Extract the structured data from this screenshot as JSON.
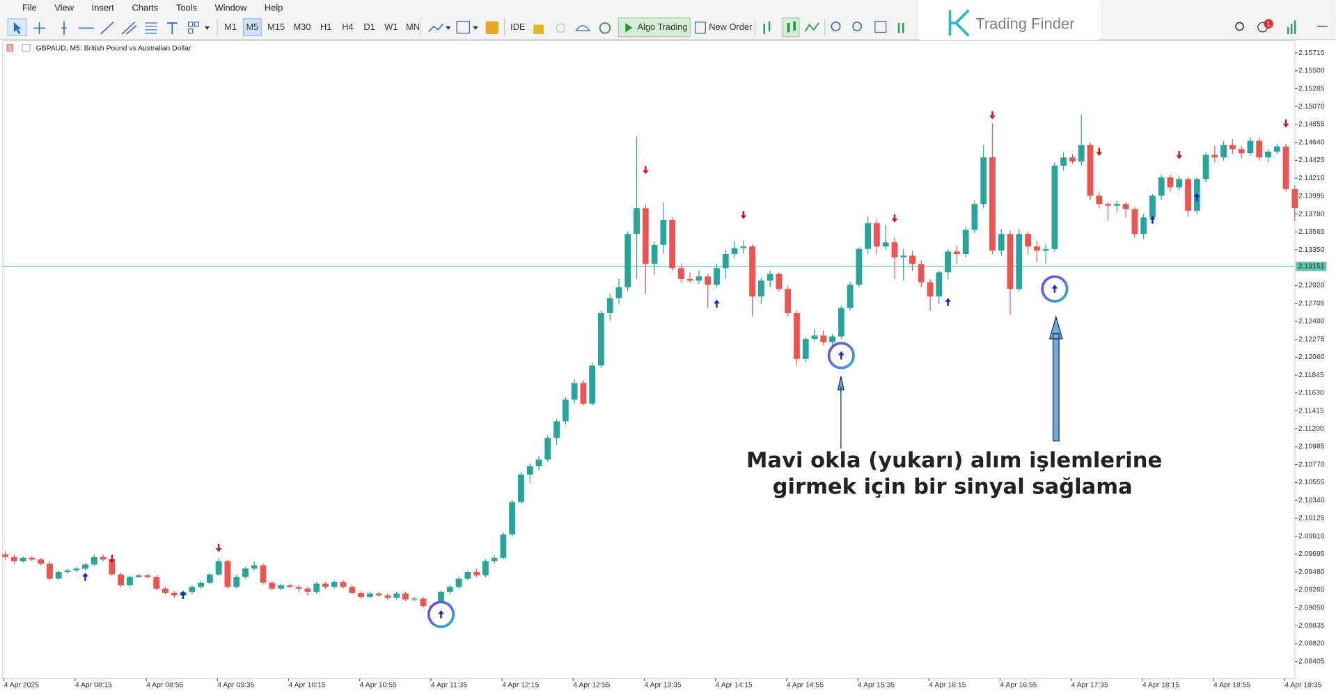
{
  "menu": [
    "File",
    "View",
    "Insert",
    "Charts",
    "Tools",
    "Window",
    "Help"
  ],
  "timeframes": [
    "M1",
    "M5",
    "M15",
    "M30",
    "H1",
    "H4",
    "D1",
    "W1",
    "MN"
  ],
  "toolbar": {
    "ide": "IDE",
    "algo": "Algo Trading",
    "order": "New Order",
    "badge": "1"
  },
  "logo": "Trading Finder",
  "annotation": [
    "Mavi okla (yukarı) alım işlemlerine",
    "girmek için bir sinyal sağlama"
  ],
  "chart_data": {
    "type": "candlestick",
    "title": "GBPAUD, M5:  British Pound vs Australian Dollar",
    "up_color": "#26a69a",
    "down_color": "#ef5350",
    "buy_color": "#1a22c8",
    "sell_color": "#d81010",
    "ylim": [
      2.082,
      2.1586
    ],
    "yticks": [
      2.15715,
      {
        "value": 2.155,
        "label": "2.15500"
      },
      2.15285,
      {
        "value": 2.1507,
        "label": "2.15070"
      },
      2.14855,
      {
        "value": 2.1464,
        "label": "2.14640"
      },
      2.14425,
      {
        "value": 2.1421,
        "label": "2.14210"
      },
      2.13995,
      {
        "value": 2.1378,
        "label": "2.13780"
      },
      2.13565,
      {
        "value": 2.1335,
        "label": "2.13350"
      },
      {
        "value": 2.1292,
        "label": "2.12920"
      },
      2.12705,
      {
        "value": 2.1249,
        "label": "2.12490"
      },
      2.12275,
      {
        "value": 2.1206,
        "label": "2.12060"
      },
      2.11845,
      {
        "value": 2.1163,
        "label": "2.11630"
      },
      2.11415,
      {
        "value": 2.112,
        "label": "2.11200"
      },
      2.10985,
      {
        "value": 2.1077,
        "label": "2.10770"
      },
      2.10555,
      {
        "value": 2.1034,
        "label": "2.10340"
      },
      2.10125,
      {
        "value": 2.0991,
        "label": "2.09910"
      },
      2.09695,
      {
        "value": 2.0948,
        "label": "2.09480"
      },
      2.09265,
      {
        "value": 2.0905,
        "label": "2.09050"
      },
      2.08835,
      {
        "value": 2.0862,
        "label": "2.08620"
      },
      2.08405
    ],
    "xticks": [
      {
        "value": 0,
        "label": "4 Apr 2025"
      },
      {
        "value": 8,
        "label": "4 Apr 08:15"
      },
      {
        "value": 16,
        "label": "4 Apr 08:55"
      },
      {
        "value": 24,
        "label": "4 Apr 09:35"
      },
      {
        "value": 32,
        "label": "4 Apr 10:15"
      },
      {
        "value": 40,
        "label": "4 Apr 10:55"
      },
      {
        "value": 48,
        "label": "4 Apr 11:35"
      },
      {
        "value": 56,
        "label": "4 Apr 12:15"
      },
      {
        "value": 64,
        "label": "4 Apr 12:55"
      },
      {
        "value": 72,
        "label": "4 Apr 13:35"
      },
      {
        "value": 80,
        "label": "4 Apr 14:15"
      },
      {
        "value": 88,
        "label": "4 Apr 14:55"
      },
      {
        "value": 96,
        "label": "4 Apr 15:35"
      },
      {
        "value": 104,
        "label": "4 Apr 16:15"
      },
      {
        "value": 112,
        "label": "4 Apr 16:55"
      },
      {
        "value": 120,
        "label": "4 Apr 17:35"
      },
      {
        "value": 128,
        "label": "4 Apr 18:15"
      },
      {
        "value": 136,
        "label": "4 Apr 18:55"
      },
      {
        "value": 144,
        "label": "4 Apr 19:35"
      }
    ],
    "price_line": 2.13151,
    "price_line_color": "#5fc4b0",
    "candles": [
      [
        2.0969,
        2.0973,
        2.0962,
        2.0966
      ],
      [
        2.0966,
        2.0969,
        2.0958,
        2.0961
      ],
      [
        2.0961,
        2.0967,
        2.0959,
        2.0965
      ],
      [
        2.0965,
        2.0967,
        2.0961,
        2.0963
      ],
      [
        2.0963,
        2.0965,
        2.0956,
        2.0958
      ],
      [
        2.0958,
        2.0961,
        2.0938,
        2.094
      ],
      [
        2.094,
        2.095,
        2.0938,
        2.0948
      ],
      [
        2.0948,
        2.0952,
        2.0946,
        2.095
      ],
      [
        2.095,
        2.0954,
        2.0948,
        2.0952
      ],
      [
        2.0952,
        2.0959,
        2.095,
        2.0957
      ],
      [
        2.0957,
        2.0969,
        2.0955,
        2.0966
      ],
      [
        2.0966,
        2.0969,
        2.0961,
        2.0963
      ],
      [
        2.0963,
        2.0966,
        2.0943,
        2.0945
      ],
      [
        2.0945,
        2.0947,
        2.093,
        2.0932
      ],
      [
        2.0932,
        2.0943,
        2.093,
        2.0942
      ],
      [
        2.0942,
        2.0946,
        2.0941,
        2.0944
      ],
      [
        2.0944,
        2.0946,
        2.094,
        2.0942
      ],
      [
        2.0942,
        2.0944,
        2.0926,
        2.0928
      ],
      [
        2.0928,
        2.093,
        2.0921,
        2.0923
      ],
      [
        2.0923,
        2.0925,
        2.0917,
        2.092
      ],
      [
        2.092,
        2.0926,
        2.0916,
        2.0924
      ],
      [
        2.0924,
        2.0932,
        2.0922,
        2.093
      ],
      [
        2.093,
        2.0937,
        2.0928,
        2.0935
      ],
      [
        2.0935,
        2.0947,
        2.0933,
        2.0945
      ],
      [
        2.0945,
        2.0965,
        2.0943,
        2.0961
      ],
      [
        2.0961,
        2.0963,
        2.0928,
        2.093
      ],
      [
        2.093,
        2.0944,
        2.0928,
        2.0942
      ],
      [
        2.0942,
        2.0954,
        2.094,
        2.0952
      ],
      [
        2.0952,
        2.0961,
        2.095,
        2.0956
      ],
      [
        2.0956,
        2.0958,
        2.0933,
        2.0935
      ],
      [
        2.0935,
        2.0937,
        2.0926,
        2.0928
      ],
      [
        2.0928,
        2.0934,
        2.0926,
        2.0932
      ],
      [
        2.0932,
        2.0934,
        2.0928,
        2.093
      ],
      [
        2.093,
        2.0932,
        2.0924,
        2.0928
      ],
      [
        2.0928,
        2.093,
        2.092,
        2.0924
      ],
      [
        2.0924,
        2.0936,
        2.0922,
        2.0934
      ],
      [
        2.0934,
        2.0936,
        2.0928,
        2.093
      ],
      [
        2.093,
        2.0938,
        2.0928,
        2.0936
      ],
      [
        2.0936,
        2.0938,
        2.0928,
        2.093
      ],
      [
        2.093,
        2.0932,
        2.0921,
        2.0923
      ],
      [
        2.0923,
        2.0925,
        2.0916,
        2.0918
      ],
      [
        2.0918,
        2.0924,
        2.0916,
        2.0922
      ],
      [
        2.0922,
        2.0924,
        2.0918,
        2.092
      ],
      [
        2.092,
        2.0922,
        2.0914,
        2.0917
      ],
      [
        2.0917,
        2.0924,
        2.0915,
        2.0922
      ],
      [
        2.0922,
        2.0924,
        2.0913,
        2.0915
      ],
      [
        2.0915,
        2.0918,
        2.0913,
        2.0916
      ],
      [
        2.0916,
        2.0918,
        2.0905,
        2.0907
      ],
      [
        2.0907,
        2.0909,
        2.0904,
        2.0906
      ],
      [
        2.0906,
        2.0926,
        2.0904,
        2.0924
      ],
      [
        2.0924,
        2.0932,
        2.0922,
        2.093
      ],
      [
        2.093,
        2.0942,
        2.0928,
        2.094
      ],
      [
        2.094,
        2.095,
        2.0938,
        2.0948
      ],
      [
        2.0948,
        2.0952,
        2.0942,
        2.0944
      ],
      [
        2.0944,
        2.0963,
        2.0942,
        2.0961
      ],
      [
        2.0961,
        2.0968,
        2.0958,
        2.0965
      ],
      [
        2.0965,
        2.0996,
        2.0963,
        2.0993
      ],
      [
        2.0993,
        2.1035,
        2.099,
        2.1032
      ],
      [
        2.1032,
        2.1068,
        2.103,
        2.1065
      ],
      [
        2.1065,
        2.1078,
        2.1055,
        2.1075
      ],
      [
        2.1075,
        2.1087,
        2.107,
        2.1083
      ],
      [
        2.1083,
        2.1112,
        2.108,
        2.1109
      ],
      [
        2.1109,
        2.1132,
        2.11,
        2.1129
      ],
      [
        2.1129,
        2.1158,
        2.1125,
        2.1155
      ],
      [
        2.1155,
        2.118,
        2.115,
        2.1175
      ],
      [
        2.1175,
        2.1178,
        2.1148,
        2.115
      ],
      [
        2.115,
        2.12,
        2.1148,
        2.1196
      ],
      [
        2.1196,
        2.1262,
        2.1193,
        2.1259
      ],
      [
        2.1259,
        2.1282,
        2.125,
        2.1277
      ],
      [
        2.1277,
        2.13,
        2.127,
        2.129
      ],
      [
        2.129,
        2.1357,
        2.1285,
        2.1354
      ],
      [
        2.1354,
        2.1471,
        2.13,
        2.1385
      ],
      [
        2.1385,
        2.139,
        2.1282,
        2.1318
      ],
      [
        2.1318,
        2.1345,
        2.1305,
        2.1341
      ],
      [
        2.1341,
        2.1392,
        2.133,
        2.1371
      ],
      [
        2.1371,
        2.1374,
        2.131,
        2.1313
      ],
      [
        2.1313,
        2.1318,
        2.1296,
        2.13
      ],
      [
        2.13,
        2.1308,
        2.1295,
        2.1298
      ],
      [
        2.1298,
        2.131,
        2.1294,
        2.1303
      ],
      [
        2.1303,
        2.1306,
        2.1265,
        2.1293
      ],
      [
        2.1293,
        2.1318,
        2.129,
        2.1313
      ],
      [
        2.1313,
        2.1335,
        2.13,
        2.133
      ],
      [
        2.133,
        2.1345,
        2.1325,
        2.1337
      ],
      [
        2.1337,
        2.1346,
        2.133,
        2.1339
      ],
      [
        2.1339,
        2.1342,
        2.1255,
        2.1279
      ],
      [
        2.1279,
        2.1302,
        2.127,
        2.1298
      ],
      [
        2.1298,
        2.131,
        2.129,
        2.1306
      ],
      [
        2.1306,
        2.1308,
        2.1285,
        2.1288
      ],
      [
        2.1288,
        2.1292,
        2.1255,
        2.1259
      ],
      [
        2.1259,
        2.1262,
        2.1196,
        2.1204
      ],
      [
        2.1204,
        2.123,
        2.12,
        2.1228
      ],
      [
        2.1228,
        2.124,
        2.1225,
        2.1232
      ],
      [
        2.1232,
        2.1238,
        2.122,
        2.1224
      ],
      [
        2.1224,
        2.1234,
        2.122,
        2.1231
      ],
      [
        2.1231,
        2.1268,
        2.1228,
        2.1265
      ],
      [
        2.1265,
        2.1296,
        2.1262,
        2.1293
      ],
      [
        2.1293,
        2.1338,
        2.129,
        2.1336
      ],
      [
        2.1336,
        2.1375,
        2.133,
        2.1367
      ],
      [
        2.1367,
        2.1372,
        2.133,
        2.1339
      ],
      [
        2.1339,
        2.1365,
        2.1335,
        2.1344
      ],
      [
        2.1344,
        2.135,
        2.13,
        2.1326
      ],
      [
        2.1326,
        2.1336,
        2.1298,
        2.1328
      ],
      [
        2.1328,
        2.1334,
        2.131,
        2.1318
      ],
      [
        2.1318,
        2.1322,
        2.129,
        2.1296
      ],
      [
        2.1296,
        2.13,
        2.1262,
        2.1279
      ],
      [
        2.1279,
        2.131,
        2.127,
        2.1308
      ],
      [
        2.1308,
        2.1336,
        2.13,
        2.1333
      ],
      [
        2.1333,
        2.134,
        2.1318,
        2.133
      ],
      [
        2.133,
        2.1362,
        2.1326,
        2.1359
      ],
      [
        2.1359,
        2.1394,
        2.1355,
        2.139
      ],
      [
        2.139,
        2.1461,
        2.1385,
        2.1446
      ],
      [
        2.1446,
        2.1487,
        2.133,
        2.1334
      ],
      [
        2.1334,
        2.136,
        2.1328,
        2.1354
      ],
      [
        2.1354,
        2.1358,
        2.1257,
        2.1288
      ],
      [
        2.1288,
        2.136,
        2.1285,
        2.1354
      ],
      [
        2.1354,
        2.1357,
        2.133,
        2.1339
      ],
      [
        2.1339,
        2.1346,
        2.132,
        2.1334
      ],
      [
        2.1334,
        2.1342,
        2.1318,
        2.1336
      ],
      [
        2.1336,
        2.144,
        2.1333,
        2.1436
      ],
      [
        2.1436,
        2.1452,
        2.143,
        2.1446
      ],
      [
        2.1446,
        2.145,
        2.1438,
        2.1441
      ],
      [
        2.1441,
        2.1497,
        2.1436,
        2.1461
      ],
      [
        2.1461,
        2.1464,
        2.1395,
        2.14
      ],
      [
        2.14,
        2.1404,
        2.1385,
        2.139
      ],
      [
        2.139,
        2.1392,
        2.137,
        2.1388
      ],
      [
        2.1388,
        2.1394,
        2.138,
        2.139
      ],
      [
        2.139,
        2.1392,
        2.1374,
        2.1384
      ],
      [
        2.1384,
        2.1386,
        2.135,
        2.1354
      ],
      [
        2.1354,
        2.1378,
        2.1348,
        2.1374
      ],
      [
        2.1374,
        2.1402,
        2.137,
        2.14
      ],
      [
        2.14,
        2.1425,
        2.1395,
        2.1422
      ],
      [
        2.1422,
        2.1425,
        2.1405,
        2.141
      ],
      [
        2.141,
        2.1424,
        2.1406,
        2.142
      ],
      [
        2.142,
        2.1423,
        2.1375,
        2.1382
      ],
      [
        2.1382,
        2.1422,
        2.1378,
        2.142
      ],
      [
        2.142,
        2.1452,
        2.1416,
        2.1449
      ],
      [
        2.1449,
        2.146,
        2.144,
        2.1446
      ],
      [
        2.1446,
        2.1466,
        2.1442,
        2.1461
      ],
      [
        2.1461,
        2.1468,
        2.145,
        2.1456
      ],
      [
        2.1456,
        2.146,
        2.1445,
        2.1451
      ],
      [
        2.1451,
        2.147,
        2.1448,
        2.1466
      ],
      [
        2.1466,
        2.147,
        2.1442,
        2.1446
      ],
      [
        2.1446,
        2.1456,
        2.144,
        2.1453
      ],
      [
        2.1453,
        2.1462,
        2.145,
        2.1459
      ],
      [
        2.1459,
        2.1462,
        2.1405,
        2.1408
      ],
      [
        2.1408,
        2.1412,
        2.137,
        2.1385
      ]
    ],
    "buy_signals": [
      {
        "index": 9,
        "value": 2.0942
      },
      {
        "index": 20,
        "value": 2.092
      },
      {
        "index": 49,
        "value": 2.0897,
        "highlight": true
      },
      {
        "index": 80,
        "value": 2.127
      },
      {
        "index": 94,
        "value": 2.1208,
        "highlight": true
      },
      {
        "index": 106,
        "value": 2.1272
      },
      {
        "index": 118,
        "value": 2.1288,
        "highlight": true
      },
      {
        "index": 129,
        "value": 2.1371
      },
      {
        "index": 134,
        "value": 2.1398
      }
    ],
    "sell_signals": [
      {
        "index": 12,
        "value": 2.0964
      },
      {
        "index": 24,
        "value": 2.0977
      },
      {
        "index": 72,
        "value": 2.1431
      },
      {
        "index": 83,
        "value": 2.1377
      },
      {
        "index": 100,
        "value": 2.1373
      },
      {
        "index": 111,
        "value": 2.1497
      },
      {
        "index": 123,
        "value": 2.1453
      },
      {
        "index": 132,
        "value": 2.1449
      },
      {
        "index": 144,
        "value": 2.1487
      }
    ]
  }
}
